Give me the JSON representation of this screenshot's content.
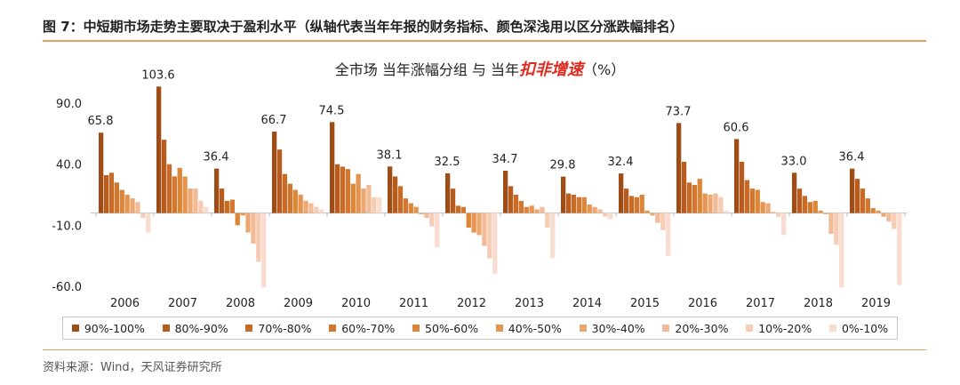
{
  "figure_title": "图 7：中短期市场走势主要取决于盈利水平（纵轴代表当年年报的财务指标、颜色深浅用以区分涨跌幅排名）",
  "subtitle_prefix": "全市场  当年涨幅分组  与  当年",
  "subtitle_highlight": "扣非增速",
  "subtitle_suffix": "（%）",
  "source": "资料来源：Wind，天风证券研究所",
  "chart_data": {
    "type": "bar",
    "categories": [
      "2006",
      "2007",
      "2008",
      "2009",
      "2010",
      "2011",
      "2012",
      "2013",
      "2014",
      "2015",
      "2016",
      "2017",
      "2018",
      "2019"
    ],
    "y_ticks": [
      "90.0",
      "40.0",
      "-10.0",
      "-60.0"
    ],
    "ylim": [
      -62,
      110
    ],
    "grid": false,
    "legend_position": "bottom",
    "max_labels": [
      "65.8",
      "103.6",
      "36.4",
      "66.7",
      "74.5",
      "38.1",
      "32.5",
      "34.7",
      "29.8",
      "32.4",
      "73.7",
      "60.6",
      "33.0",
      "36.4"
    ],
    "series": [
      {
        "name": "90%-100%",
        "color": "#9e4d16",
        "values": [
          65.8,
          103.6,
          36.4,
          66.7,
          74.5,
          38.1,
          32.5,
          34.7,
          29.8,
          32.4,
          73.7,
          60.6,
          33.0,
          36.4
        ]
      },
      {
        "name": "80%-90%",
        "color": "#b75c1d",
        "values": [
          31,
          60,
          20,
          52,
          40,
          30,
          20,
          22,
          16,
          20,
          42,
          42,
          20,
          28
        ]
      },
      {
        "name": "70%-80%",
        "color": "#c76b26",
        "values": [
          33,
          40,
          10,
          32,
          38,
          22,
          6,
          15,
          15,
          14,
          25,
          27,
          14,
          20
        ]
      },
      {
        "name": "60%-70%",
        "color": "#d2772f",
        "values": [
          25,
          30,
          11,
          24,
          36,
          12,
          5,
          10,
          13,
          13,
          23,
          20,
          9,
          12
        ]
      },
      {
        "name": "50%-60%",
        "color": "#dc8638",
        "values": [
          19,
          37,
          -10,
          19,
          24,
          8,
          -12,
          5,
          13,
          15,
          28,
          19,
          10,
          4
        ]
      },
      {
        "name": "40%-50%",
        "color": "#e59550",
        "values": [
          15,
          30,
          -2,
          15,
          32,
          5,
          -16,
          6,
          7,
          2,
          16,
          9,
          2,
          2
        ]
      },
      {
        "name": "30%-40%",
        "color": "#eda871",
        "values": [
          12,
          20,
          -16,
          10,
          20,
          -1,
          -18,
          3,
          5,
          -2,
          15,
          8,
          -1,
          -3
        ]
      },
      {
        "name": "20%-30%",
        "color": "#f2bb97",
        "values": [
          9,
          20,
          -25,
          8,
          23,
          -4,
          -27,
          5,
          3,
          -8,
          16,
          1,
          -17,
          -7
        ]
      },
      {
        "name": "10%-20%",
        "color": "#f6ccb5",
        "values": [
          -4,
          10,
          -40,
          5,
          13,
          -11,
          -37,
          -12,
          -3,
          -14,
          13,
          -3,
          -26,
          -13
        ]
      },
      {
        "name": "0%-10%",
        "color": "#f9dcd0",
        "values": [
          -16,
          5,
          -61,
          3,
          13,
          -28,
          -50,
          -37,
          -5,
          -35,
          2,
          -18,
          -61,
          -59
        ]
      }
    ]
  }
}
